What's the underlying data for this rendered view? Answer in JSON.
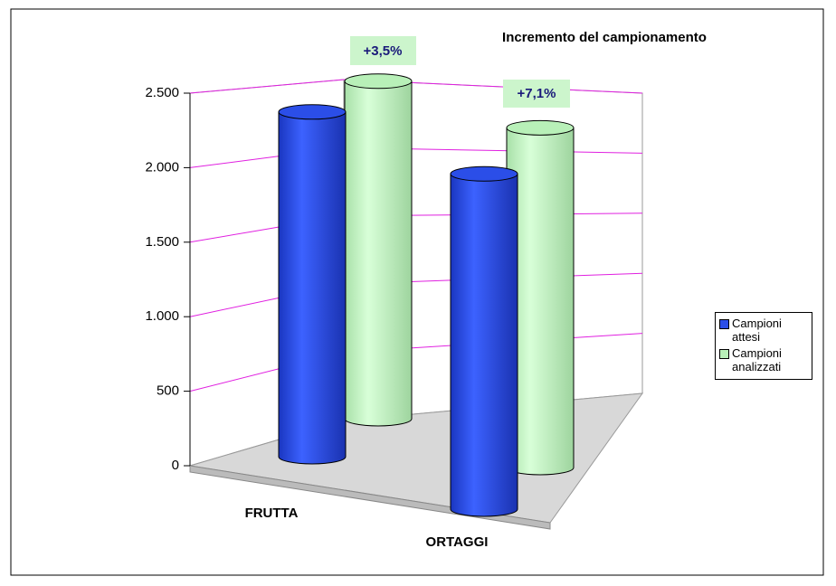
{
  "chart_data": {
    "type": "bar3d",
    "title": "Incremento del campionamento",
    "categories": [
      "FRUTTA",
      "ORTAGGI"
    ],
    "series": [
      {
        "name": "Campioni attesi",
        "color": "#2b4ee8",
        "values": [
          2330,
          2200
        ]
      },
      {
        "name": "Campioni analizzati",
        "color": "#b8f0b8",
        "values": [
          2411,
          2356
        ]
      }
    ],
    "annotations": [
      "+3,5%",
      "+7,1%"
    ],
    "ylim": [
      0,
      2500
    ],
    "yticks": [
      0,
      500,
      {
        "value": 1000,
        "label": "1.000"
      },
      {
        "value": 1500,
        "label": "1.500"
      },
      {
        "value": 2000,
        "label": "2.000"
      },
      {
        "value": 2500,
        "label": "2.500"
      }
    ],
    "grid": true,
    "grid_color": "#e020e0",
    "legend": "right"
  }
}
